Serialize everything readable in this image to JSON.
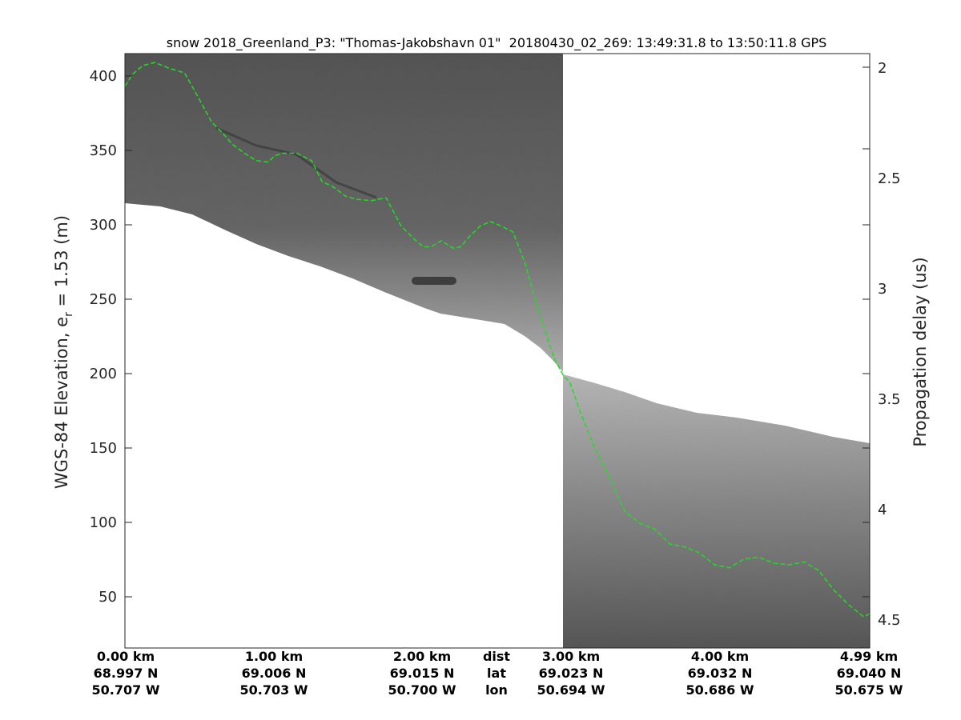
{
  "chart_data": {
    "type": "line",
    "title": "snow 2018_Greenland_P3: \"Thomas-Jakobshavn 01\"  20180430_02_269: 13:49:31.8 to 13:50:11.8 GPS",
    "ylabel_main": "WGS-84 Elevation, e",
    "ylabel_sub": "r",
    "ylabel_tail": " = 1.53 (m)",
    "ylabel_right": "Propagation delay (us)",
    "xlim": [
      0,
      4.99
    ],
    "ylim": [
      16,
      416
    ],
    "yticks_left": [
      "400",
      "350",
      "300",
      "250",
      "200",
      "150",
      "100",
      "50"
    ],
    "yticks_right": [
      "2",
      "2.5",
      "3",
      "3.5",
      "4",
      "4.5"
    ],
    "x_columns": [
      {
        "dist": "0.00 km",
        "lat": "68.997 N",
        "lon": "50.707 W"
      },
      {
        "dist": "1.00 km",
        "lat": "69.006 N",
        "lon": "50.703 W"
      },
      {
        "dist": "2.00 km",
        "lat": "69.015 N",
        "lon": "50.700 W"
      },
      {
        "dist": "3.00 km",
        "lat": "69.023 N",
        "lon": "50.694 W"
      },
      {
        "dist": "4.00 km",
        "lat": "69.032 N",
        "lon": "50.686 W"
      },
      {
        "dist": "4.99 km",
        "lat": "69.040 N",
        "lon": "50.675 W"
      }
    ],
    "row_labels": {
      "dist": "dist",
      "lat": "lat",
      "lon": "lon"
    },
    "series": [
      {
        "style": "dashed",
        "color": "#22dd22",
        "x": [
          0.0,
          0.05,
          0.12,
          0.2,
          0.3,
          0.4,
          0.5,
          0.58,
          0.65,
          0.72,
          0.8,
          0.88,
          0.96,
          1.0,
          1.05,
          1.15,
          1.25,
          1.32,
          1.4,
          1.48,
          1.55,
          1.65,
          1.75,
          1.85,
          1.95,
          2.0,
          2.05,
          2.12,
          2.2,
          2.25,
          2.3,
          2.38,
          2.45,
          2.52,
          2.6,
          2.68,
          2.75,
          2.82,
          2.88,
          2.94,
          2.98,
          3.05,
          3.15,
          3.25,
          3.35,
          3.45,
          3.55,
          3.65,
          3.75,
          3.85,
          3.95,
          4.05,
          4.15,
          4.25,
          4.35,
          4.45,
          4.55,
          4.65,
          4.75,
          4.85,
          4.95,
          4.99
        ],
        "y": [
          394,
          402,
          408,
          410,
          406,
          403,
          385,
          370,
          363,
          355,
          349,
          344,
          343,
          347,
          349,
          349,
          344,
          330,
          326,
          320,
          318,
          317,
          319,
          300,
          290,
          286,
          286,
          290,
          285,
          286,
          292,
          300,
          303,
          300,
          296,
          275,
          250,
          228,
          210,
          199,
          195,
          175,
          150,
          130,
          108,
          100,
          96,
          86,
          84,
          80,
          72,
          70,
          76,
          77,
          73,
          72,
          74,
          68,
          55,
          45,
          37,
          39
        ]
      }
    ],
    "colors": {
      "radargram": "#585858",
      "surface_band": "#b4b4b4",
      "layer": "#22dd22"
    }
  }
}
